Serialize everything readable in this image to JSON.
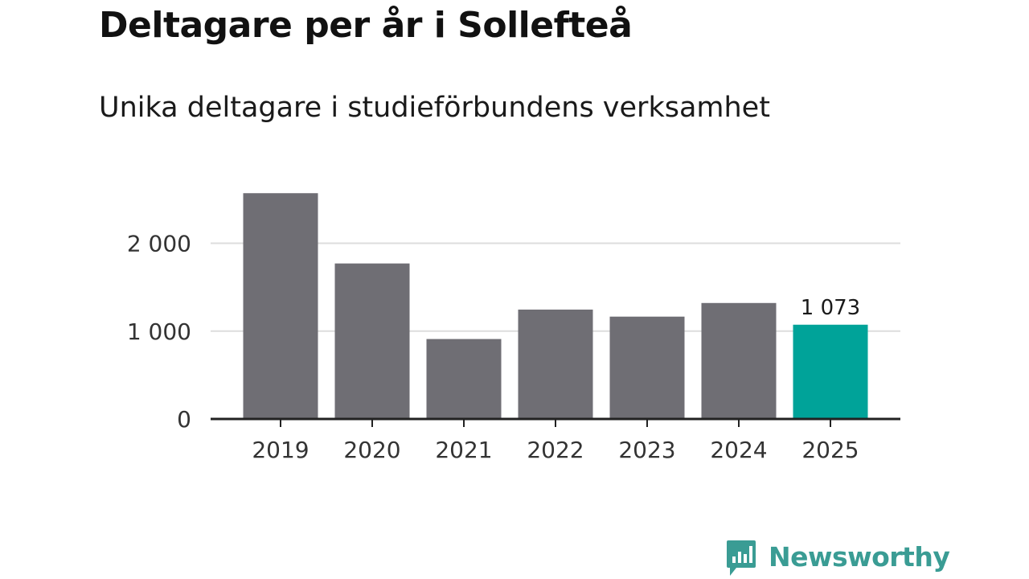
{
  "chart_data": {
    "type": "bar",
    "title": "Deltagare per år i Sollefteå",
    "subtitle": "Unika deltagare i studieförbundens verksamhet",
    "xlabel": "",
    "ylabel": "",
    "categories": [
      "2019",
      "2020",
      "2021",
      "2022",
      "2023",
      "2024",
      "2025"
    ],
    "values": [
      2570,
      1770,
      910,
      1245,
      1165,
      1320,
      1073
    ],
    "ylim": [
      0,
      2500
    ],
    "yticks": [
      0,
      1000,
      2000
    ],
    "ytick_labels": [
      "0",
      "1 000",
      "2 000"
    ],
    "grid": true,
    "highlight_index": 6,
    "annotations": [
      {
        "category": "2025",
        "text": "1 073"
      }
    ],
    "colors": {
      "bar": "#6f6e74",
      "highlight": "#00a399",
      "grid": "#dddddd",
      "axis": "#222222"
    }
  },
  "brand": {
    "name": "Newsworthy",
    "icon": "newsworthy-logo-icon",
    "color": "#3a9c94"
  }
}
